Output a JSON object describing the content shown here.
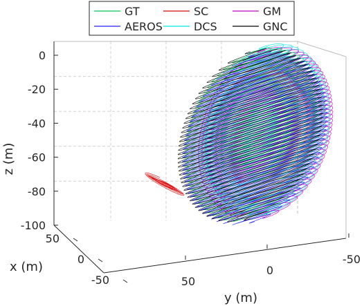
{
  "chart_data": {
    "type": "line",
    "projection": "3d",
    "xlabel": "x (m)",
    "ylabel": "y (m)",
    "zlabel": "z (m)",
    "xlim": [
      -70,
      70
    ],
    "ylim": [
      -70,
      110
    ],
    "zlim": [
      -105,
      0
    ],
    "x_ticks": [
      "50",
      "0",
      "-50"
    ],
    "y_ticks": [
      "50",
      "0",
      "-50"
    ],
    "z_ticks": [
      "0",
      "-20",
      "-40",
      "-60",
      "-80",
      "-100"
    ],
    "grid": true,
    "box": true,
    "legend_position": "top",
    "legend_columns": 3,
    "series": [
      {
        "name": "GT",
        "color": "#00c853",
        "shape": "sphere",
        "center": {
          "x": 0,
          "y": 0,
          "z": -50
        },
        "radius": 50
      },
      {
        "name": "SC",
        "color": "#e00000",
        "shape": "outlier-trajectory",
        "center": {
          "x": 10,
          "y": 80,
          "z": -72
        }
      },
      {
        "name": "GM",
        "color": "#cc00cc",
        "shape": "sphere",
        "center": {
          "x": 0,
          "y": -10,
          "z": -50
        },
        "radius": 50
      },
      {
        "name": "AEROS",
        "color": "#2020ff",
        "shape": "sphere",
        "center": {
          "x": 0,
          "y": 0,
          "z": -52
        },
        "radius": 50
      },
      {
        "name": "DCS",
        "color": "#00e5e5",
        "shape": "sphere",
        "center": {
          "x": 0,
          "y": -12,
          "z": -48
        },
        "radius": 50
      },
      {
        "name": "GNC",
        "color": "#000000",
        "shape": "sphere",
        "center": {
          "x": 0,
          "y": 4,
          "z": -50
        },
        "radius": 50
      }
    ]
  }
}
